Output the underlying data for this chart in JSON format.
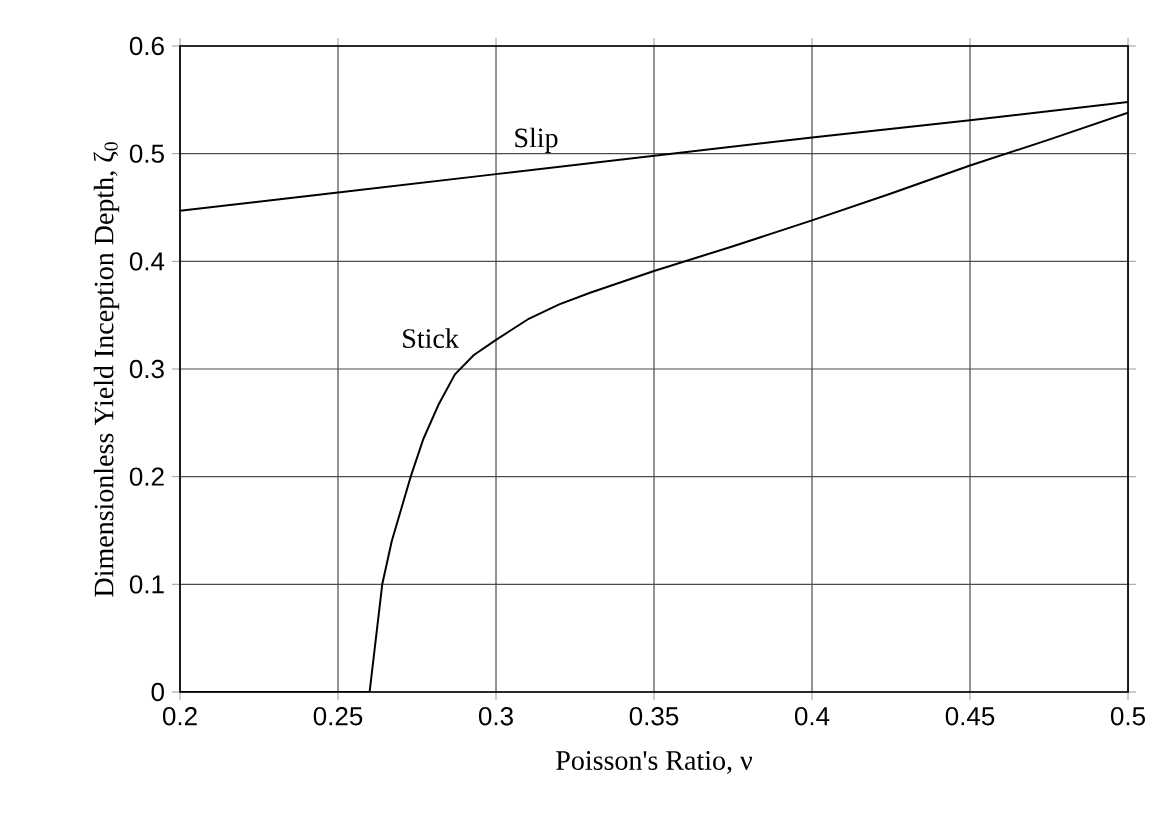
{
  "chart_data": {
    "type": "line",
    "xlabel": "Poisson's Ratio, ν",
    "ylabel": "Dimensionless Yield  Inception Depth, ζ$_{0}$",
    "xlim": [
      0.2,
      0.5
    ],
    "ylim": [
      0,
      0.6
    ],
    "xticks": [
      0.2,
      0.25,
      0.3,
      0.35,
      0.4,
      0.45,
      0.5
    ],
    "yticks": [
      0,
      0.1,
      0.2,
      0.3,
      0.4,
      0.5,
      0.6
    ],
    "grid": true,
    "legend": false,
    "marker": "none",
    "line_style": "solid",
    "series": [
      {
        "name": "Slip",
        "color": "#000000",
        "x": [
          0.2,
          0.25,
          0.3,
          0.35,
          0.4,
          0.45,
          0.5
        ],
        "values": [
          0.447,
          0.464,
          0.481,
          0.498,
          0.515,
          0.531,
          0.548
        ]
      },
      {
        "name": "Stick",
        "color": "#000000",
        "x": [
          0.2,
          0.26,
          0.262,
          0.264,
          0.267,
          0.27,
          0.273,
          0.277,
          0.282,
          0.287,
          0.293,
          0.3,
          0.31,
          0.32,
          0.33,
          0.34,
          0.35,
          0.375,
          0.4,
          0.425,
          0.45,
          0.475,
          0.5
        ],
        "values": [
          0,
          0,
          0.05,
          0.1,
          0.14,
          0.17,
          0.2,
          0.235,
          0.268,
          0.295,
          0.313,
          0.327,
          0.346,
          0.36,
          0.371,
          0.381,
          0.391,
          0.414,
          0.438,
          0.463,
          0.489,
          0.513,
          0.538
        ]
      }
    ]
  }
}
